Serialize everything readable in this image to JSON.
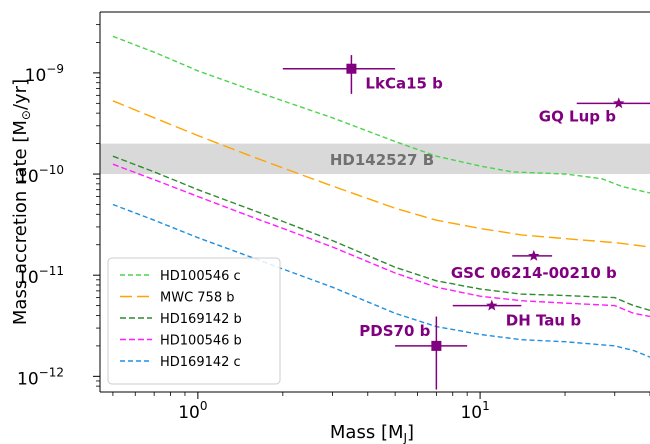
{
  "chart_data": {
    "type": "line",
    "xlabel": "Mass [$M_J$]",
    "xlabel_text": "Mass [M",
    "xlabel_sub": "J",
    "xlabel_close": "]",
    "ylabel_text": "Mass accretion rate [M",
    "ylabel_sub": "⊙",
    "ylabel_close": "/yr]",
    "x_scale": "log",
    "y_scale": "log",
    "xlim": [
      0.45,
      40
    ],
    "ylim": [
      7e-13,
      4e-09
    ],
    "x_ticks": [
      {
        "value": 1,
        "base": "10",
        "exp": "0"
      },
      {
        "value": 10,
        "base": "10",
        "exp": "1"
      }
    ],
    "y_ticks": [
      {
        "value": 1e-12,
        "base": "10",
        "exp": "−12"
      },
      {
        "value": 1e-11,
        "base": "10",
        "exp": "−11"
      },
      {
        "value": 1e-10,
        "base": "10",
        "exp": "−10"
      },
      {
        "value": 1e-09,
        "base": "10",
        "exp": "−9"
      }
    ],
    "band": {
      "label": "HD142527 B",
      "y_low": 1e-10,
      "y_high": 2e-10,
      "color": "#d9d9d9"
    },
    "series": [
      {
        "name": "HD100546 c",
        "color": "#4cd44c",
        "dash": "5,3",
        "points": [
          [
            0.5,
            2.3e-09
          ],
          [
            0.7,
            1.6e-09
          ],
          [
            1,
            1.05e-09
          ],
          [
            1.5,
            7e-10
          ],
          [
            2,
            5.3e-10
          ],
          [
            3,
            3.6e-10
          ],
          [
            5,
            2.1e-10
          ],
          [
            7,
            1.5e-10
          ],
          [
            10,
            1.2e-10
          ],
          [
            13,
            1.05e-10
          ],
          [
            20,
            1e-10
          ],
          [
            27,
            9e-11
          ],
          [
            32,
            7.5e-11
          ],
          [
            40,
            6.5e-11
          ]
        ]
      },
      {
        "name": "MWC 758 b",
        "color": "#ffa500",
        "dash": "12,5",
        "points": [
          [
            0.5,
            5.3e-10
          ],
          [
            0.7,
            3.6e-10
          ],
          [
            1,
            2.4e-10
          ],
          [
            1.5,
            1.55e-10
          ],
          [
            2,
            1.15e-10
          ],
          [
            3,
            7.6e-11
          ],
          [
            5,
            4.6e-11
          ],
          [
            7,
            3.5e-11
          ],
          [
            10,
            2.9e-11
          ],
          [
            14,
            2.5e-11
          ],
          [
            20,
            2.3e-11
          ],
          [
            30,
            2.1e-11
          ],
          [
            40,
            1.9e-11
          ]
        ]
      },
      {
        "name": "HD169142 b",
        "color": "#2e8b2e",
        "dash": "6,3",
        "points": [
          [
            0.5,
            1.5e-10
          ],
          [
            0.7,
            1.05e-10
          ],
          [
            1,
            7e-11
          ],
          [
            1.5,
            4.6e-11
          ],
          [
            2,
            3.4e-11
          ],
          [
            3,
            2.2e-11
          ],
          [
            5,
            1.2e-11
          ],
          [
            7,
            8.8e-12
          ],
          [
            10,
            7.3e-12
          ],
          [
            14,
            6.5e-12
          ],
          [
            20,
            6.3e-12
          ],
          [
            30,
            6e-12
          ],
          [
            35,
            5e-12
          ],
          [
            40,
            4.5e-12
          ]
        ]
      },
      {
        "name": "HD100546 b",
        "color": "#ff1eff",
        "dash": "6,3",
        "points": [
          [
            0.5,
            1.25e-10
          ],
          [
            0.7,
            8.8e-11
          ],
          [
            1,
            6e-11
          ],
          [
            1.5,
            3.9e-11
          ],
          [
            2,
            2.9e-11
          ],
          [
            3,
            1.9e-11
          ],
          [
            5,
            1.05e-11
          ],
          [
            7,
            7.6e-12
          ],
          [
            10,
            6.2e-12
          ],
          [
            14,
            5.6e-12
          ],
          [
            20,
            5.3e-12
          ],
          [
            30,
            5e-12
          ],
          [
            35,
            4.2e-12
          ],
          [
            40,
            3.9e-12
          ]
        ]
      },
      {
        "name": "HD169142 c",
        "color": "#1e8fe0",
        "dash": "5,3",
        "points": [
          [
            0.5,
            5e-11
          ],
          [
            0.7,
            3.5e-11
          ],
          [
            1,
            2.35e-11
          ],
          [
            1.5,
            1.55e-11
          ],
          [
            2,
            1.15e-11
          ],
          [
            3,
            7.6e-12
          ],
          [
            5,
            4.2e-12
          ],
          [
            7,
            3.1e-12
          ],
          [
            10,
            2.6e-12
          ],
          [
            14,
            2.3e-12
          ],
          [
            20,
            2.2e-12
          ],
          [
            30,
            2e-12
          ],
          [
            35,
            1.8e-12
          ],
          [
            40,
            1.55e-12
          ]
        ]
      }
    ],
    "planets": [
      {
        "name": "LkCa15 b",
        "marker": "square",
        "x": 3.5,
        "y": 1.1e-09,
        "x_err": [
          2.0,
          5.0
        ],
        "y_err": [
          6.2e-10,
          1.5e-09
        ],
        "label_pos": "lower-right"
      },
      {
        "name": "GQ Lup b",
        "marker": "star",
        "x": 31,
        "y": 5e-10,
        "x_err": [
          22,
          42
        ],
        "y_err": [
          5e-10,
          5e-10
        ],
        "label_pos": "lower-left"
      },
      {
        "name": "GSC 06214-00210 b",
        "marker": "star",
        "x": 15.5,
        "y": 1.55e-11,
        "x_err": [
          13,
          18
        ],
        "y_err": [
          1.55e-11,
          1.55e-11
        ],
        "label_pos": "below"
      },
      {
        "name": "DH Tau b",
        "marker": "star",
        "x": 11,
        "y": 5e-12,
        "x_err": [
          8,
          14
        ],
        "y_err": [
          5e-12,
          5e-12
        ],
        "label_pos": "lower-right"
      },
      {
        "name": "PDS70 b",
        "marker": "square",
        "x": 7,
        "y": 2e-12,
        "x_err": [
          5,
          9
        ],
        "y_err": [
          7.4e-13,
          3.9e-12
        ],
        "label_pos": "upper-left"
      }
    ],
    "planet_color": "#800080",
    "legend": {
      "position": "lower-left"
    },
    "grid": false
  }
}
